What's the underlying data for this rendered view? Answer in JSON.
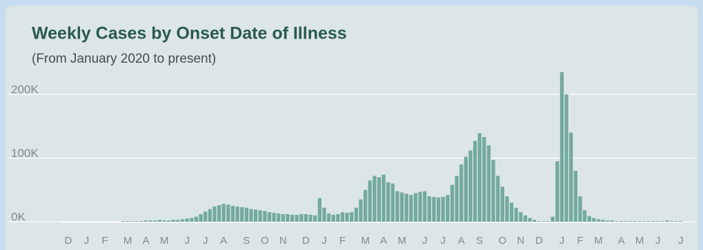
{
  "chart_data": {
    "type": "bar",
    "title": "Weekly Cases by Onset Date of Illness",
    "subtitle": "(From January 2020 to present)",
    "color": "#74aaa0",
    "grid": true,
    "ylim": [
      0,
      240000
    ],
    "yticks": [
      {
        "value": 0,
        "label": "0K"
      },
      {
        "value": 100000,
        "label": "100K"
      },
      {
        "value": 200000,
        "label": "200K"
      }
    ],
    "categories": [
      null,
      "D",
      null,
      null,
      null,
      "J",
      null,
      null,
      null,
      "F",
      null,
      null,
      null,
      null,
      "M",
      null,
      null,
      null,
      "A",
      null,
      null,
      null,
      "M",
      null,
      null,
      null,
      null,
      "J",
      null,
      null,
      null,
      "J",
      null,
      null,
      null,
      "A",
      null,
      null,
      null,
      null,
      "S",
      null,
      null,
      null,
      "O",
      null,
      null,
      null,
      "N",
      null,
      null,
      null,
      null,
      "D",
      null,
      null,
      null,
      "J",
      null,
      null,
      null,
      "F",
      null,
      null,
      null,
      null,
      "M",
      null,
      null,
      null,
      "A",
      null,
      null,
      null,
      "M",
      null,
      null,
      null,
      null,
      "J",
      null,
      null,
      null,
      "J",
      null,
      null,
      null,
      "A",
      null,
      null,
      null,
      "S",
      null,
      null,
      null,
      null,
      "O",
      null,
      null,
      null,
      "N",
      null,
      null,
      null,
      "D",
      null,
      null,
      null,
      null,
      "J",
      null,
      null,
      null,
      "F",
      null,
      null,
      null,
      "M",
      null,
      null,
      null,
      null,
      "A",
      null,
      null,
      null,
      "M",
      null,
      null,
      null,
      "J",
      null,
      null,
      null,
      null,
      "J"
    ],
    "values": [
      0,
      0,
      0,
      0,
      0,
      0,
      0,
      0,
      0,
      0,
      0,
      0,
      0,
      1000,
      1000,
      1000,
      1000,
      1000,
      2000,
      2000,
      2000,
      3000,
      2000,
      2000,
      3000,
      3000,
      4000,
      5000,
      6000,
      8000,
      12000,
      16000,
      20000,
      24000,
      26000,
      28000,
      27000,
      25000,
      24000,
      23000,
      22000,
      20000,
      19000,
      18000,
      17000,
      15000,
      14000,
      13000,
      12000,
      12000,
      11000,
      11000,
      12000,
      12000,
      11000,
      10000,
      37000,
      22000,
      13000,
      11000,
      12000,
      15000,
      14000,
      15000,
      22000,
      35000,
      50000,
      65000,
      72000,
      70000,
      74000,
      62000,
      60000,
      48000,
      46000,
      44000,
      42000,
      45000,
      47000,
      48000,
      40000,
      39000,
      38000,
      39000,
      42000,
      58000,
      72000,
      90000,
      102000,
      112000,
      127000,
      139000,
      133000,
      120000,
      97000,
      72000,
      55000,
      40000,
      30000,
      22000,
      15000,
      10000,
      6000,
      3000,
      1000,
      1000,
      1000,
      8000,
      95000,
      235000,
      200000,
      140000,
      80000,
      40000,
      18000,
      9000,
      6000,
      4000,
      3000,
      2000,
      2000,
      1000,
      1000,
      1000,
      1000,
      1000,
      1000,
      1000,
      1000,
      1000,
      1000,
      1000,
      2000,
      1000,
      1000,
      1000
    ]
  }
}
